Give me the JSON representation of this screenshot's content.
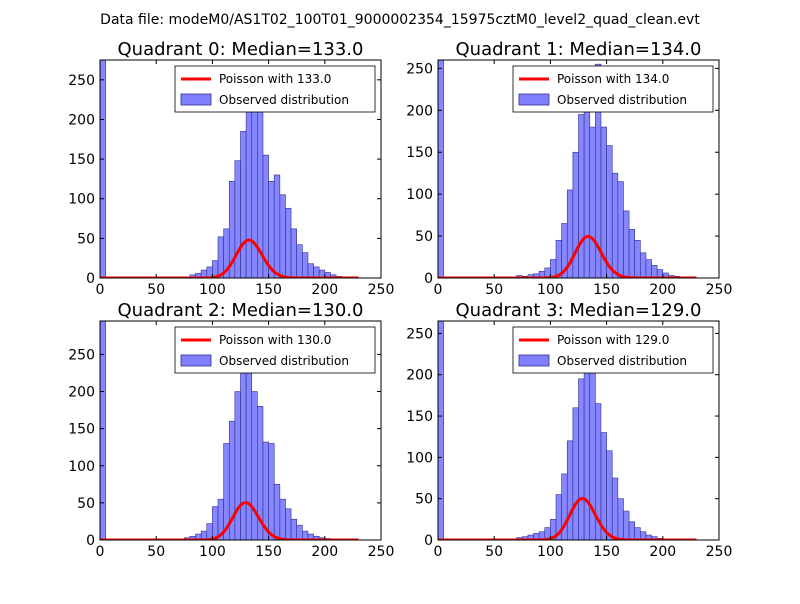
{
  "figure": {
    "suptitle": "Data file: modeM0/AS1T02_100T01_9000002354_15975cztM0_level2_quad_clean.evt"
  },
  "legend": {
    "observed_label": "Observed distribution"
  },
  "colors": {
    "hist_fill": "#8080ff",
    "hist_edge": "#303090",
    "poisson_line": "#ff0000"
  },
  "chart_data": [
    {
      "type": "bar",
      "title": "Quadrant 0: Median=133.0",
      "median": 133.0,
      "poisson_label": "Poisson with 133.0",
      "xlim": [
        0,
        250
      ],
      "ylim": [
        0,
        275
      ],
      "xticks": [
        0,
        50,
        100,
        150,
        200,
        250
      ],
      "yticks": [
        0,
        50,
        100,
        150,
        200,
        250
      ],
      "bin_width": 5,
      "bins_start": [
        0,
        80,
        85,
        90,
        95,
        100,
        105,
        110,
        115,
        120,
        125,
        130,
        135,
        140,
        145,
        150,
        155,
        160,
        165,
        170,
        175,
        180,
        185,
        190,
        195,
        200,
        205,
        210,
        215
      ],
      "counts": [
        275,
        4,
        6,
        10,
        14,
        22,
        52,
        62,
        122,
        148,
        185,
        240,
        225,
        210,
        155,
        122,
        130,
        105,
        88,
        62,
        42,
        32,
        18,
        14,
        10,
        7,
        4,
        2,
        1
      ],
      "poisson_scale": 1380
    },
    {
      "type": "bar",
      "title": "Quadrant 1: Median=134.0",
      "median": 134.0,
      "poisson_label": "Poisson with 134.0",
      "xlim": [
        0,
        250
      ],
      "ylim": [
        0,
        260
      ],
      "xticks": [
        0,
        50,
        100,
        150,
        200,
        250
      ],
      "yticks": [
        0,
        50,
        100,
        150,
        200,
        250
      ],
      "bin_width": 5,
      "bins_start": [
        0,
        70,
        75,
        80,
        85,
        90,
        95,
        100,
        105,
        110,
        115,
        120,
        125,
        130,
        135,
        140,
        145,
        150,
        155,
        160,
        165,
        170,
        175,
        180,
        185,
        190,
        195,
        200,
        205,
        210
      ],
      "counts": [
        260,
        3,
        2,
        4,
        5,
        8,
        12,
        22,
        45,
        65,
        105,
        150,
        195,
        215,
        180,
        255,
        180,
        158,
        125,
        115,
        80,
        58,
        45,
        30,
        22,
        15,
        10,
        6,
        3,
        2
      ],
      "poisson_scale": 1440
    },
    {
      "type": "bar",
      "title": "Quadrant 2: Median=130.0",
      "median": 130.0,
      "poisson_label": "Poisson with 130.0",
      "xlim": [
        0,
        250
      ],
      "ylim": [
        0,
        295
      ],
      "xticks": [
        0,
        50,
        100,
        150,
        200,
        250
      ],
      "yticks": [
        0,
        50,
        100,
        150,
        200,
        250
      ],
      "bin_width": 5,
      "bins_start": [
        0,
        75,
        80,
        85,
        90,
        95,
        100,
        105,
        110,
        115,
        120,
        125,
        130,
        135,
        140,
        145,
        150,
        155,
        160,
        165,
        170,
        175,
        180,
        185,
        190,
        195,
        200,
        205
      ],
      "counts": [
        295,
        3,
        5,
        8,
        12,
        22,
        45,
        55,
        130,
        160,
        200,
        250,
        265,
        200,
        180,
        132,
        130,
        75,
        55,
        42,
        28,
        20,
        12,
        8,
        5,
        3,
        2,
        1
      ],
      "poisson_scale": 1440
    },
    {
      "type": "bar",
      "title": "Quadrant 3: Median=129.0",
      "median": 129.0,
      "poisson_label": "Poisson with 129.0",
      "xlim": [
        0,
        250
      ],
      "ylim": [
        0,
        265
      ],
      "xticks": [
        0,
        50,
        100,
        150,
        200,
        250
      ],
      "yticks": [
        0,
        50,
        100,
        150,
        200,
        250
      ],
      "bin_width": 5,
      "bins_start": [
        0,
        70,
        75,
        80,
        85,
        90,
        95,
        100,
        105,
        110,
        115,
        120,
        125,
        130,
        135,
        140,
        145,
        150,
        155,
        160,
        165,
        170,
        175,
        180,
        185,
        190,
        195,
        200
      ],
      "counts": [
        265,
        3,
        4,
        6,
        8,
        10,
        15,
        25,
        55,
        80,
        120,
        160,
        195,
        230,
        245,
        165,
        130,
        108,
        75,
        50,
        35,
        22,
        15,
        10,
        6,
        4,
        2,
        1
      ],
      "poisson_scale": 1430
    }
  ]
}
